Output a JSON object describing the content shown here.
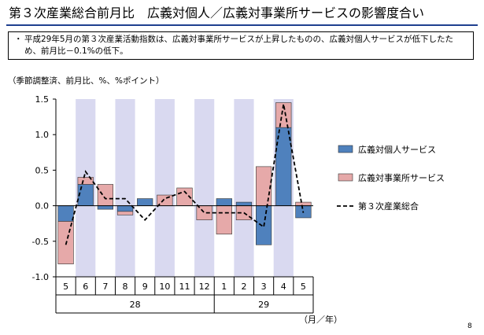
{
  "title": "第３次産業総合前月比　広義対個人／広義対事業所サービスの影響度合い",
  "note": {
    "bullet": "・",
    "text": "平成29年5月の第３次産業活動指数は、広義対事業所サービスが上昇したものの、広義対個人サービスが低下したため、前月比－0.1%の低下。"
  },
  "unit_label": "（季節調整済、前月比、%、%ポイント）",
  "x_unit_label": "（月／年）",
  "page_number": "8",
  "chart_data": {
    "type": "bar",
    "stacked": true,
    "categories": [
      "5",
      "6",
      "7",
      "8",
      "9",
      "10",
      "11",
      "12",
      "1",
      "2",
      "3",
      "4",
      "5"
    ],
    "year_groups": [
      {
        "label": "28",
        "start": 0,
        "end": 7
      },
      {
        "label": "29",
        "start": 8,
        "end": 12
      }
    ],
    "ylim": [
      -1.0,
      1.5
    ],
    "yticks": [
      "1.5",
      "1.0",
      "0.5",
      "0.0",
      "-0.5",
      "-1.0"
    ],
    "ytick_values": [
      1.5,
      1.0,
      0.5,
      0.0,
      -0.5,
      -1.0
    ],
    "shaded_columns": [
      1,
      3,
      5,
      7,
      9,
      11
    ],
    "series": [
      {
        "name": "広義対個人サービス",
        "kind": "bar",
        "color": "#4f81bd",
        "values": [
          -0.22,
          0.3,
          -0.05,
          -0.08,
          0.1,
          0.0,
          0.0,
          0.0,
          0.1,
          0.05,
          -0.55,
          1.1,
          -0.17
        ]
      },
      {
        "name": "広義対事業所サービス",
        "kind": "bar",
        "color": "#e6a9a9",
        "values": [
          -0.6,
          0.1,
          0.3,
          -0.05,
          0.0,
          0.15,
          0.25,
          -0.2,
          -0.4,
          -0.2,
          0.55,
          0.35,
          0.05
        ]
      },
      {
        "name": "第３次産業総合",
        "kind": "line",
        "style": "dashed",
        "color": "#000000",
        "values": [
          -0.55,
          0.48,
          0.1,
          0.1,
          -0.2,
          0.1,
          0.2,
          -0.1,
          -0.1,
          -0.1,
          -0.3,
          1.43,
          -0.1
        ]
      }
    ],
    "legend_position": "right",
    "grid": false
  },
  "colors": {
    "shade": "#d9d9f0",
    "title_rule": "#1f3f8f"
  }
}
